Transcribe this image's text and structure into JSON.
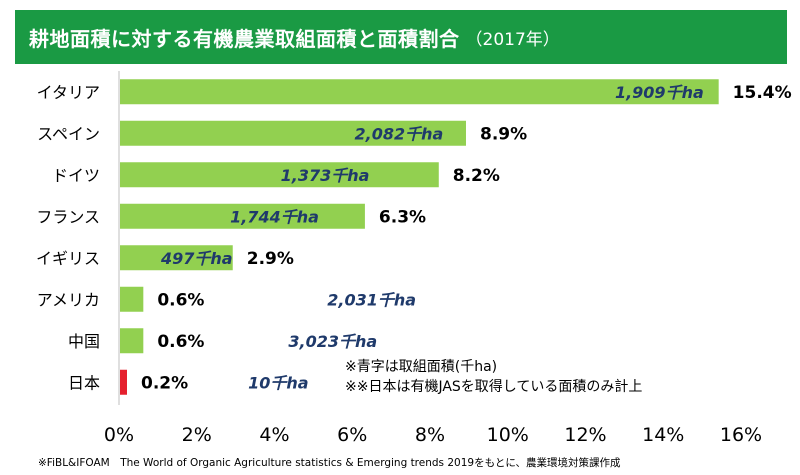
{
  "title": {
    "main": "耕地面積に対する有機農業取組面積と面積割合",
    "year": "（2017年）"
  },
  "notes": [
    "※青字は取組面積(千ha)",
    "※※日本は有機JASを取得している面積のみ計上"
  ],
  "source": "※FiBL&IFOAM　The World of Organic Agriculture statistics & Emerging trends 2019をもとに、農業環境対策課作成",
  "colors": {
    "title_bg": "#1a9a44",
    "bar": "#92d050",
    "japan_bar": "#e5202e",
    "area_text": "#1f3a6b"
  },
  "chart_data": {
    "type": "bar",
    "orientation": "horizontal",
    "categories": [
      "イタリア",
      "スペイン",
      "ドイツ",
      "フランス",
      "イギリス",
      "アメリカ",
      "中国",
      "日本"
    ],
    "values": [
      15.4,
      8.9,
      8.2,
      6.3,
      2.9,
      0.6,
      0.6,
      0.2
    ],
    "value_labels": [
      "15.4%",
      "8.9%",
      "8.2%",
      "6.3%",
      "2.9%",
      "0.6%",
      "0.6%",
      "0.2%"
    ],
    "area_labels": [
      "1,909千ha",
      "2,082千ha",
      "1,373千ha",
      "1,744千ha",
      "497千ha",
      "2,031千ha",
      "3,023千ha",
      "10千ha"
    ],
    "highlight_category": "日本",
    "xlim": [
      0,
      16
    ],
    "xticks": [
      "0%",
      "2%",
      "4%",
      "6%",
      "8%",
      "10%",
      "12%",
      "14%",
      "16%"
    ],
    "grid": false
  }
}
